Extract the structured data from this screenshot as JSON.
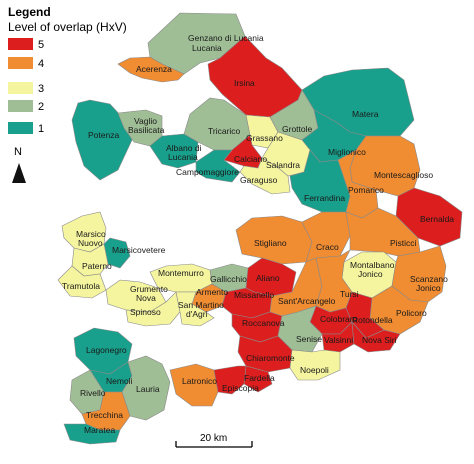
{
  "legend": {
    "title": "Legend",
    "subtitle": "Level of overlap (HxV)",
    "items": [
      {
        "label": "5",
        "color": "#dc1e1e"
      },
      {
        "label": "4",
        "color": "#f08c32"
      },
      {
        "label": "3",
        "color": "#f5f5a0"
      },
      {
        "label": "2",
        "color": "#a0be96"
      },
      {
        "label": "1",
        "color": "#19a08c"
      }
    ]
  },
  "north_arrow": {
    "label": "N"
  },
  "scale_bar": {
    "label": "20 km"
  },
  "municipalities": [
    {
      "name": "Genzano di Lucania",
      "level": 2
    },
    {
      "name": "Acerenza",
      "level": 4
    },
    {
      "name": "Irsina",
      "level": 5
    },
    {
      "name": "Matera",
      "level": 1
    },
    {
      "name": "Potenza",
      "level": 1
    },
    {
      "name": "Vaglio Basilicata",
      "level": 2
    },
    {
      "name": "Albano di Lucania",
      "level": 1
    },
    {
      "name": "Tricarico",
      "level": 2
    },
    {
      "name": "Grassano",
      "level": 3
    },
    {
      "name": "Grottole",
      "level": 2
    },
    {
      "name": "Miglionico",
      "level": 1
    },
    {
      "name": "Calciano",
      "level": 5
    },
    {
      "name": "Campomaggiore",
      "level": 1
    },
    {
      "name": "Salandra",
      "level": 3
    },
    {
      "name": "Garaguso",
      "level": 3
    },
    {
      "name": "Ferrandina",
      "level": 1
    },
    {
      "name": "Montescaglioso",
      "level": 4
    },
    {
      "name": "Pomarico",
      "level": 4
    },
    {
      "name": "Bernalda",
      "level": 5
    },
    {
      "name": "Marsico Nuovo",
      "level": 3
    },
    {
      "name": "Marsicovetere",
      "level": 1
    },
    {
      "name": "Paterno",
      "level": 3
    },
    {
      "name": "Tramutola",
      "level": 3
    },
    {
      "name": "Stigliano",
      "level": 4
    },
    {
      "name": "Craco",
      "level": 4
    },
    {
      "name": "Pisticci",
      "level": 4
    },
    {
      "name": "Montalbano Jonico",
      "level": 3
    },
    {
      "name": "Scanzano Jonico",
      "level": 4
    },
    {
      "name": "Montemurro",
      "level": 3
    },
    {
      "name": "Gallicchio",
      "level": 2
    },
    {
      "name": "Aliano",
      "level": 5
    },
    {
      "name": "Grumento Nova",
      "level": 3
    },
    {
      "name": "Armento",
      "level": 4
    },
    {
      "name": "Missanello",
      "level": 5
    },
    {
      "name": "Sant'Arcangelo",
      "level": 4
    },
    {
      "name": "Tursi",
      "level": 4
    },
    {
      "name": "Policoro",
      "level": 4
    },
    {
      "name": "Spinoso",
      "level": 3
    },
    {
      "name": "San Martino d'Agri",
      "level": 3
    },
    {
      "name": "Roccanova",
      "level": 5
    },
    {
      "name": "Colobraro",
      "level": 5
    },
    {
      "name": "Rotondella",
      "level": 5
    },
    {
      "name": "Senise",
      "level": 2
    },
    {
      "name": "Valsinni",
      "level": 5
    },
    {
      "name": "Nova Siri",
      "level": 5
    },
    {
      "name": "Lagonegro",
      "level": 1
    },
    {
      "name": "Chiaromonte",
      "level": 5
    },
    {
      "name": "Nemoli",
      "level": 1
    },
    {
      "name": "Noepoli",
      "level": 3
    },
    {
      "name": "Rivello",
      "level": 2
    },
    {
      "name": "Lauria",
      "level": 2
    },
    {
      "name": "Latronico",
      "level": 4
    },
    {
      "name": "Fardella",
      "level": 5
    },
    {
      "name": "Episcopia",
      "level": 5
    },
    {
      "name": "Trecchina",
      "level": 4
    },
    {
      "name": "Maratea",
      "level": 1
    }
  ]
}
